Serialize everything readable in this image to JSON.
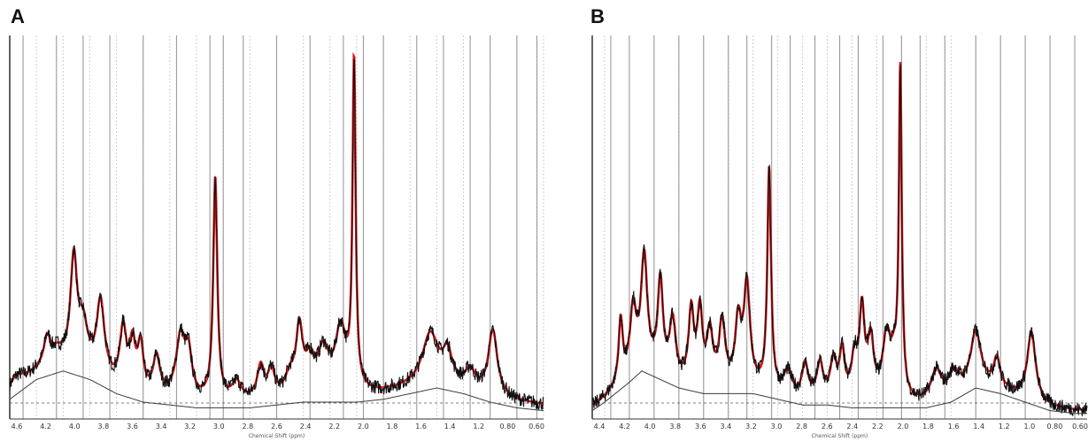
{
  "colors": {
    "fit": "#d7191c",
    "spectrum": "#111111",
    "baseline": "#3a3a3a",
    "grid_dark": "#9a9a9a",
    "grid_light": "#cfcfcf"
  },
  "chart_data": [
    {
      "panel": "A",
      "type": "line",
      "xlabel": "Chemical Shift (ppm)",
      "x_reversed": true,
      "xlim": [
        4.6,
        0.6
      ],
      "ylim": [
        0,
        100
      ],
      "ticks": [
        "4.6",
        "4.4",
        "4.2",
        "4.0",
        "3.8",
        "3.6",
        "3.4",
        "3.2",
        "3.0",
        "2.8",
        "2.6",
        "2.4",
        "2.2",
        "2.0",
        "1.8",
        "1.6",
        "1.4",
        "1.2",
        "1.0",
        "0.8",
        "0.6"
      ],
      "tick_labels": [
        "4.6",
        "4.2",
        "4.0",
        "3.8",
        "3.6",
        "3.4",
        "3.2",
        "3.0",
        "2.8",
        "2.6",
        "2.4",
        "2.2",
        "2.0",
        "1.8",
        "1.6",
        "1.4",
        "1.2",
        "0.80",
        "0.60"
      ],
      "solid_gridlines": [
        4.5,
        4.25,
        4.05,
        3.85,
        3.6,
        3.35,
        3.1,
        3.0,
        2.85,
        2.6,
        2.35,
        2.1,
        1.95,
        1.8,
        1.55,
        1.35,
        1.15,
        1.0,
        0.8,
        0.65
      ],
      "baseline": [
        [
          4.6,
          6
        ],
        [
          4.4,
          13
        ],
        [
          4.2,
          16
        ],
        [
          4.0,
          13
        ],
        [
          3.8,
          8
        ],
        [
          3.6,
          5
        ],
        [
          3.4,
          4
        ],
        [
          3.2,
          3
        ],
        [
          3.0,
          3
        ],
        [
          2.8,
          3
        ],
        [
          2.6,
          4
        ],
        [
          2.4,
          5
        ],
        [
          2.2,
          5
        ],
        [
          2.0,
          5
        ],
        [
          1.8,
          6
        ],
        [
          1.6,
          8
        ],
        [
          1.4,
          10
        ],
        [
          1.2,
          8
        ],
        [
          1.0,
          5
        ],
        [
          0.8,
          3
        ],
        [
          0.6,
          2
        ]
      ],
      "noise_floor": 2,
      "peaks": [
        {
          "ppm": 4.55,
          "height": 4,
          "width": 0.07,
          "fit": false
        },
        {
          "ppm": 4.32,
          "height": 10,
          "width": 0.03,
          "fit": true
        },
        {
          "ppm": 4.25,
          "height": 4,
          "width": 0.05,
          "fit": false
        },
        {
          "ppm": 4.12,
          "height": 37,
          "width": 0.03,
          "fit": true
        },
        {
          "ppm": 4.05,
          "height": 14,
          "width": 0.04,
          "fit": true
        },
        {
          "ppm": 3.92,
          "height": 26,
          "width": 0.035,
          "fit": true
        },
        {
          "ppm": 3.75,
          "height": 20,
          "width": 0.03,
          "fit": true
        },
        {
          "ppm": 3.68,
          "height": 15,
          "width": 0.025,
          "fit": true
        },
        {
          "ppm": 3.62,
          "height": 16,
          "width": 0.025,
          "fit": true
        },
        {
          "ppm": 3.5,
          "height": 13,
          "width": 0.03,
          "fit": true
        },
        {
          "ppm": 3.32,
          "height": 21,
          "width": 0.04,
          "fit": true
        },
        {
          "ppm": 3.26,
          "height": 14,
          "width": 0.03,
          "fit": true
        },
        {
          "ppm": 3.06,
          "height": 78,
          "width": 0.018,
          "fit": true
        },
        {
          "ppm": 2.9,
          "height": 6,
          "width": 0.04,
          "fit": false
        },
        {
          "ppm": 2.72,
          "height": 11,
          "width": 0.03,
          "fit": true
        },
        {
          "ppm": 2.64,
          "height": 9,
          "width": 0.03,
          "fit": true
        },
        {
          "ppm": 2.5,
          "height": 6,
          "width": 0.04,
          "fit": false
        },
        {
          "ppm": 2.43,
          "height": 22,
          "width": 0.03,
          "fit": true
        },
        {
          "ppm": 2.35,
          "height": 10,
          "width": 0.04,
          "fit": true
        },
        {
          "ppm": 2.25,
          "height": 14,
          "width": 0.05,
          "fit": true
        },
        {
          "ppm": 2.12,
          "height": 22,
          "width": 0.05,
          "fit": true
        },
        {
          "ppm": 2.02,
          "height": 116,
          "width": 0.014,
          "fit": true
        },
        {
          "ppm": 1.45,
          "height": 17,
          "width": 0.07,
          "fit": false
        },
        {
          "ppm": 1.32,
          "height": 10,
          "width": 0.04,
          "fit": false
        },
        {
          "ppm": 1.15,
          "height": 6,
          "width": 0.04,
          "fit": false
        },
        {
          "ppm": 0.98,
          "height": 23,
          "width": 0.04,
          "fit": false
        }
      ]
    },
    {
      "panel": "B",
      "type": "line",
      "xlabel": "Chemical Shift (ppm)",
      "x_reversed": true,
      "xlim": [
        4.5,
        0.5
      ],
      "ylim": [
        0,
        100
      ],
      "ticks": [
        "4.4",
        "4.2",
        "4.0",
        "3.8",
        "3.6",
        "3.4",
        "3.2",
        "3.0",
        "2.8",
        "2.6",
        "2.4",
        "2.2",
        "2.0",
        "1.8",
        "1.6",
        "1.4",
        "1.2",
        "1.0",
        "0.8",
        "0.6"
      ],
      "tick_labels": [
        "4.4",
        "4.2",
        "4.0",
        "3.8",
        "3.6",
        "3.4",
        "3.2",
        "3.0",
        "2.8",
        "2.6",
        "2.4",
        "2.2",
        "2.0",
        "1.8",
        "1.6",
        "1.4",
        "1.2",
        "1.0",
        "0.80",
        "0.60"
      ],
      "solid_gridlines": [
        4.35,
        4.2,
        4.0,
        3.8,
        3.6,
        3.4,
        3.25,
        3.05,
        2.9,
        2.7,
        2.5,
        2.35,
        2.15,
        2.0,
        1.85,
        1.65,
        1.4,
        1.2,
        1.0,
        0.8,
        0.6
      ],
      "baseline": [
        [
          4.5,
          2
        ],
        [
          4.4,
          5
        ],
        [
          4.2,
          12
        ],
        [
          4.1,
          16
        ],
        [
          4.0,
          14
        ],
        [
          3.8,
          10
        ],
        [
          3.6,
          8
        ],
        [
          3.4,
          8
        ],
        [
          3.2,
          8
        ],
        [
          3.0,
          6
        ],
        [
          2.8,
          4
        ],
        [
          2.6,
          4
        ],
        [
          2.4,
          3
        ],
        [
          2.2,
          3
        ],
        [
          2.0,
          3
        ],
        [
          1.8,
          3
        ],
        [
          1.6,
          5
        ],
        [
          1.4,
          10
        ],
        [
          1.2,
          8
        ],
        [
          1.0,
          5
        ],
        [
          0.8,
          2
        ],
        [
          0.6,
          1
        ],
        [
          0.5,
          1
        ]
      ],
      "noise_floor": 1,
      "peaks": [
        {
          "ppm": 4.27,
          "height": 22,
          "width": 0.02,
          "fit": true
        },
        {
          "ppm": 4.17,
          "height": 22,
          "width": 0.03,
          "fit": true
        },
        {
          "ppm": 4.08,
          "height": 38,
          "width": 0.03,
          "fit": true
        },
        {
          "ppm": 3.95,
          "height": 32,
          "width": 0.025,
          "fit": true
        },
        {
          "ppm": 3.85,
          "height": 20,
          "width": 0.03,
          "fit": true
        },
        {
          "ppm": 3.7,
          "height": 25,
          "width": 0.025,
          "fit": true
        },
        {
          "ppm": 3.63,
          "height": 25,
          "width": 0.025,
          "fit": true
        },
        {
          "ppm": 3.55,
          "height": 18,
          "width": 0.03,
          "fit": true
        },
        {
          "ppm": 3.45,
          "height": 22,
          "width": 0.03,
          "fit": true
        },
        {
          "ppm": 3.32,
          "height": 22,
          "width": 0.03,
          "fit": true
        },
        {
          "ppm": 3.25,
          "height": 35,
          "width": 0.03,
          "fit": true
        },
        {
          "ppm": 3.07,
          "height": 78,
          "width": 0.018,
          "fit": true
        },
        {
          "ppm": 2.92,
          "height": 8,
          "width": 0.04,
          "fit": false
        },
        {
          "ppm": 2.78,
          "height": 12,
          "width": 0.03,
          "fit": true
        },
        {
          "ppm": 2.66,
          "height": 12,
          "width": 0.03,
          "fit": true
        },
        {
          "ppm": 2.55,
          "height": 13,
          "width": 0.03,
          "fit": true
        },
        {
          "ppm": 2.48,
          "height": 16,
          "width": 0.025,
          "fit": true
        },
        {
          "ppm": 2.38,
          "height": 14,
          "width": 0.03,
          "fit": true
        },
        {
          "ppm": 2.32,
          "height": 30,
          "width": 0.025,
          "fit": true
        },
        {
          "ppm": 2.25,
          "height": 20,
          "width": 0.03,
          "fit": true
        },
        {
          "ppm": 2.12,
          "height": 22,
          "width": 0.04,
          "fit": true
        },
        {
          "ppm": 2.06,
          "height": 10,
          "width": 0.03,
          "fit": true
        },
        {
          "ppm": 2.01,
          "height": 115,
          "width": 0.014,
          "fit": true
        },
        {
          "ppm": 1.72,
          "height": 10,
          "width": 0.05,
          "fit": false
        },
        {
          "ppm": 1.58,
          "height": 8,
          "width": 0.05,
          "fit": false
        },
        {
          "ppm": 1.4,
          "height": 18,
          "width": 0.05,
          "fit": false
        },
        {
          "ppm": 1.23,
          "height": 10,
          "width": 0.03,
          "fit": false
        },
        {
          "ppm": 0.95,
          "height": 24,
          "width": 0.04,
          "fit": false
        }
      ]
    }
  ]
}
